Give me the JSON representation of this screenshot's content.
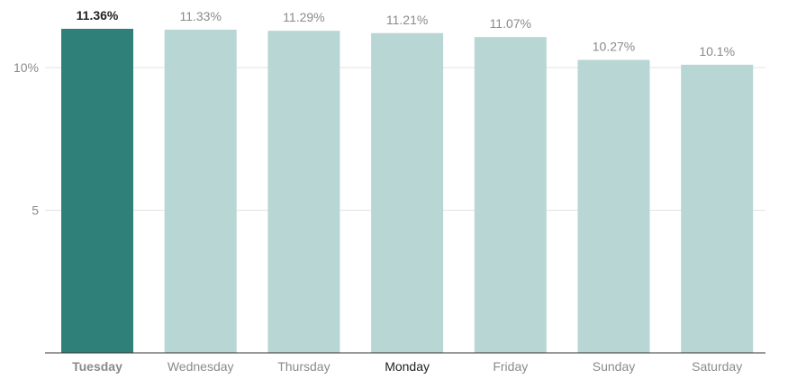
{
  "chart_data": {
    "type": "bar",
    "title": "",
    "xlabel": "",
    "ylabel": "",
    "categories": [
      "Tuesday",
      "Wednesday",
      "Thursday",
      "Monday",
      "Friday",
      "Sunday",
      "Saturday"
    ],
    "values": [
      11.36,
      11.33,
      11.29,
      11.21,
      11.07,
      10.27,
      10.1
    ],
    "data_labels": [
      "11.36%",
      "11.33%",
      "11.29%",
      "11.21%",
      "11.07%",
      "10.27%",
      "10.1%"
    ],
    "ylim": [
      0,
      11.36
    ],
    "yticks": [
      {
        "value": 5,
        "label": "5"
      },
      {
        "value": 10,
        "label": "10%"
      }
    ],
    "grid": true,
    "highlight_index": 0,
    "colors": {
      "highlight_bar": "#2e8079",
      "bar": "#b7d6d4",
      "label": "#8a8a8a",
      "highlight_label": "#222222",
      "grid": "#e2e2e2",
      "axis": "#333333"
    },
    "category_label_colors": [
      "#8a8a8a",
      "#8a8a8a",
      "#8a8a8a",
      "#222222",
      "#8a8a8a",
      "#8a8a8a",
      "#8a8a8a"
    ],
    "category_label_bold": [
      true,
      false,
      false,
      false,
      false,
      false,
      false
    ]
  }
}
